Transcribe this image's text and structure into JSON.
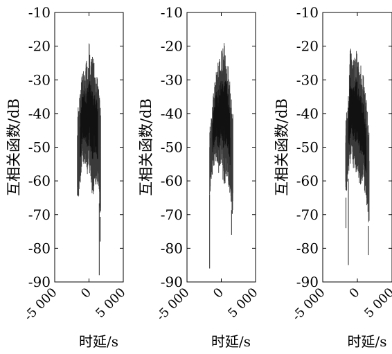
{
  "chart_data": [
    {
      "type": "line",
      "xlabel": "时延/s",
      "ylabel": "互相关函数/dB",
      "xlim": [
        -5000,
        5000
      ],
      "ylim": [
        -90,
        -10
      ],
      "x_ticks": [
        -5000,
        0,
        5000
      ],
      "x_tick_labels": [
        "-5 000",
        "0",
        "5 000"
      ],
      "y_ticks": [
        -90,
        -80,
        -70,
        -60,
        -50,
        -40,
        -30,
        -20,
        -10
      ],
      "y_tick_labels": [
        "-90",
        "-80",
        "-70",
        "-60",
        "-50",
        "-40",
        "-30",
        "-20",
        "-10"
      ],
      "grid": false,
      "series": [
        {
          "color": "#3a3a3a",
          "x_range": [
            -1700,
            1700
          ],
          "envelope_top": [
            [
              -1700,
              -40
            ],
            [
              -1500,
              -36
            ],
            [
              -1200,
              -32
            ],
            [
              -1000,
              -28
            ],
            [
              -700,
              -26
            ],
            [
              -400,
              -24
            ],
            [
              -150,
              -22
            ],
            [
              0,
              -19
            ],
            [
              200,
              -21
            ],
            [
              500,
              -22
            ],
            [
              800,
              -24
            ],
            [
              1100,
              -28
            ],
            [
              1400,
              -32
            ],
            [
              1700,
              -38
            ]
          ],
          "envelope_bottom": [
            [
              -1700,
              -66
            ],
            [
              -1500,
              -65
            ],
            [
              -1200,
              -60
            ],
            [
              -1000,
              -55
            ],
            [
              -700,
              -55
            ],
            [
              -400,
              -58
            ],
            [
              -150,
              -60
            ],
            [
              0,
              -56
            ],
            [
              200,
              -62
            ],
            [
              500,
              -65
            ],
            [
              800,
              -62
            ],
            [
              1100,
              -60
            ],
            [
              1400,
              -64
            ],
            [
              1700,
              -72
            ]
          ],
          "spikes": [
            [
              1500,
              -88
            ],
            [
              1650,
              -78
            ]
          ]
        },
        {
          "color": "#3a3a3a",
          "x_range": [
            -1700,
            1700
          ],
          "envelope_top": [
            [
              -1700,
              -45
            ],
            [
              -1500,
              -40
            ],
            [
              -1200,
              -35
            ],
            [
              -1000,
              -30
            ],
            [
              -700,
              -26
            ],
            [
              -400,
              -24
            ],
            [
              -150,
              -22
            ],
            [
              0,
              -21
            ],
            [
              200,
              -20
            ],
            [
              500,
              -18
            ],
            [
              800,
              -22
            ],
            [
              1100,
              -27
            ],
            [
              1400,
              -33
            ],
            [
              1700,
              -40
            ]
          ],
          "envelope_bottom": [
            [
              -1700,
              -64
            ],
            [
              -1500,
              -62
            ],
            [
              -1200,
              -58
            ],
            [
              -1000,
              -55
            ],
            [
              -700,
              -55
            ],
            [
              -400,
              -60
            ],
            [
              -150,
              -58
            ],
            [
              0,
              -55
            ],
            [
              200,
              -60
            ],
            [
              500,
              -62
            ],
            [
              800,
              -58
            ],
            [
              1100,
              -62
            ],
            [
              1400,
              -67
            ],
            [
              1700,
              -72
            ]
          ],
          "spikes": [
            [
              -1700,
              -86
            ],
            [
              1500,
              -76
            ]
          ]
        },
        {
          "color": "#3a3a3a",
          "x_range": [
            -1700,
            1700
          ],
          "envelope_top": [
            [
              -1700,
              -42
            ],
            [
              -1500,
              -38
            ],
            [
              -1200,
              -30
            ],
            [
              -1000,
              -19
            ],
            [
              -700,
              -25
            ],
            [
              -400,
              -22
            ],
            [
              -150,
              -20
            ],
            [
              0,
              -22
            ],
            [
              200,
              -23
            ],
            [
              500,
              -25
            ],
            [
              800,
              -28
            ],
            [
              1100,
              -32
            ],
            [
              1400,
              -38
            ],
            [
              1700,
              -45
            ]
          ],
          "envelope_bottom": [
            [
              -1700,
              -66
            ],
            [
              -1500,
              -62
            ],
            [
              -1200,
              -58
            ],
            [
              -1000,
              -55
            ],
            [
              -700,
              -55
            ],
            [
              -400,
              -58
            ],
            [
              -150,
              -58
            ],
            [
              0,
              -56
            ],
            [
              200,
              -60
            ],
            [
              500,
              -62
            ],
            [
              800,
              -60
            ],
            [
              1100,
              -64
            ],
            [
              1400,
              -68
            ],
            [
              1700,
              -76
            ]
          ],
          "spikes": [
            [
              -1300,
              -85
            ],
            [
              1600,
              -82
            ],
            [
              -1650,
              -74
            ]
          ]
        }
      ]
    }
  ]
}
